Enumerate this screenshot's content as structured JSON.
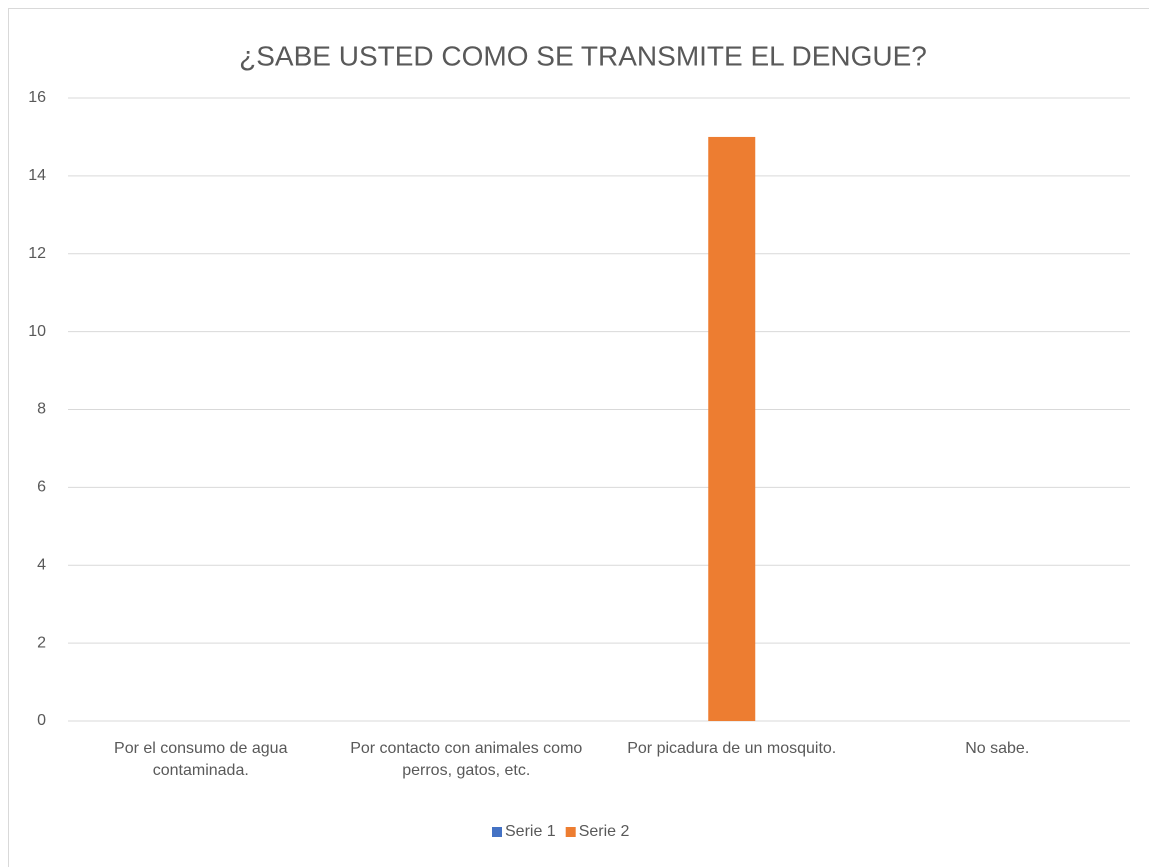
{
  "chart_data": {
    "type": "bar",
    "title": "¿SABE USTED COMO SE TRANSMITE EL DENGUE?",
    "categories": [
      "Por el consumo de agua contaminada.",
      "Por contacto con animales como perros, gatos, etc.",
      "Por picadura de un mosquito.",
      "No sabe."
    ],
    "series": [
      {
        "name": "Serie 1",
        "color": "#4472c4",
        "values": [
          0,
          0,
          0,
          0
        ]
      },
      {
        "name": "Serie 2",
        "color": "#ed7d31",
        "values": [
          0,
          0,
          15,
          0
        ]
      }
    ],
    "ylim": [
      0,
      16
    ],
    "yticks": [
      0,
      2,
      4,
      6,
      8,
      10,
      12,
      14,
      16
    ],
    "grid": true,
    "legend": "bottom"
  }
}
